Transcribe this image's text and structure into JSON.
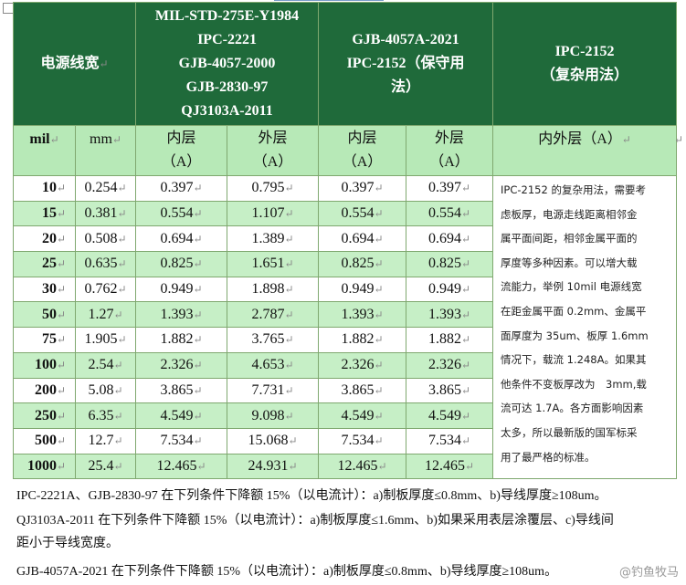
{
  "header": {
    "col_width_label": "电源线宽",
    "col_mil_std_lines": [
      "MIL-STD-275E-Y1984",
      "IPC-2221",
      "GJB-4057-2000",
      "GJB-2830-97",
      "QJ3103A-2011"
    ],
    "col_gjb_lines": [
      "GJB-4057A-2021",
      "IPC-2152（保守用",
      "法）"
    ],
    "col_ipc_lines": [
      "IPC-2152",
      "（复杂用法）"
    ]
  },
  "subheader": {
    "mil": "mil",
    "mm": "mm",
    "inner_1": "内层",
    "inner_1_unit": "（A）",
    "outer_1": "外层",
    "outer_1_unit": "（A）",
    "inner_2": "内层",
    "inner_2_unit": "（A）",
    "outer_2": "外层",
    "outer_2_unit": "（A）",
    "inner_outer": "内外层（A）"
  },
  "rows": [
    {
      "mil": "10",
      "mm": "0.254",
      "inner1": "0.397",
      "outer1": "0.795",
      "inner2": "0.397",
      "outer2": "0.397"
    },
    {
      "mil": "15",
      "mm": "0.381",
      "inner1": "0.554",
      "outer1": "1.107",
      "inner2": "0.554",
      "outer2": "0.554"
    },
    {
      "mil": "20",
      "mm": "0.508",
      "inner1": "0.694",
      "outer1": "1.389",
      "inner2": "0.694",
      "outer2": "0.694"
    },
    {
      "mil": "25",
      "mm": "0.635",
      "inner1": "0.825",
      "outer1": "1.651",
      "inner2": "0.825",
      "outer2": "0.825"
    },
    {
      "mil": "30",
      "mm": "0.762",
      "inner1": "0.949",
      "outer1": "1.898",
      "inner2": "0.949",
      "outer2": "0.949"
    },
    {
      "mil": "50",
      "mm": "1.27",
      "inner1": "1.393",
      "outer1": "2.787",
      "inner2": "1.393",
      "outer2": "1.393"
    },
    {
      "mil": "75",
      "mm": "1.905",
      "inner1": "1.882",
      "outer1": "3.765",
      "inner2": "1.882",
      "outer2": "1.882"
    },
    {
      "mil": "100",
      "mm": "2.54",
      "inner1": "2.326",
      "outer1": "4.653",
      "inner2": "2.326",
      "outer2": "2.326"
    },
    {
      "mil": "200",
      "mm": "5.08",
      "inner1": "3.865",
      "outer1": "7.731",
      "inner2": "3.865",
      "outer2": "3.865"
    },
    {
      "mil": "250",
      "mm": "6.35",
      "inner1": "4.549",
      "outer1": "9.098",
      "inner2": "4.549",
      "outer2": "4.549"
    },
    {
      "mil": "500",
      "mm": "12.7",
      "inner1": "7.534",
      "outer1": "15.068",
      "inner2": "7.534",
      "outer2": "7.534"
    },
    {
      "mil": "1000",
      "mm": "25.4",
      "inner1": "12.465",
      "outer1": "24.931",
      "inner2": "12.465",
      "outer2": "12.465"
    }
  ],
  "note_lines": [
    "IPC-2152 的复杂用法，需要考",
    "虑板厚，电源走线距离相邻金",
    "属平面间距，相邻金属平面的",
    "厚度等多种因素。可以增大载",
    "流能力，举例 10mil 电源线宽",
    "在距金属平面 0.2mm、金属平",
    "面厚度为 35um、板厚 1.6mm",
    "情况下，载流 1.248A。如果其",
    "他条件不变板厚改为　3mm,载",
    "流可达 1.7A。各方面影响因素",
    "太多，所以最新版的国军标采",
    "用了最严格的标准。"
  ],
  "footnotes": [
    "IPC-2221A、GJB-2830-97  在下列条件下降额  15%（以电流计）：a)制板厚度≤0.8mm、b)导线厚度≥108um。",
    "QJ3103A-2011 在下列条件下降额 15%（以电流计）：a)制板厚度≤1.6mm、b)如果采用表层涂覆层、c)导线间",
    "距小于导线宽度。",
    "GJB-4057A-2021 在下列条件下降额 15%（以电流计）：a)制板厚度≤0.8mm、b)导线厚度≥108um。"
  ],
  "watermark": "@钓鱼牧马",
  "colors": {
    "header_bg": "#1f6a3a",
    "subheader_bg": "#b7e9b7",
    "row_shade": "#c6efc6",
    "border": "#7fa86f"
  }
}
